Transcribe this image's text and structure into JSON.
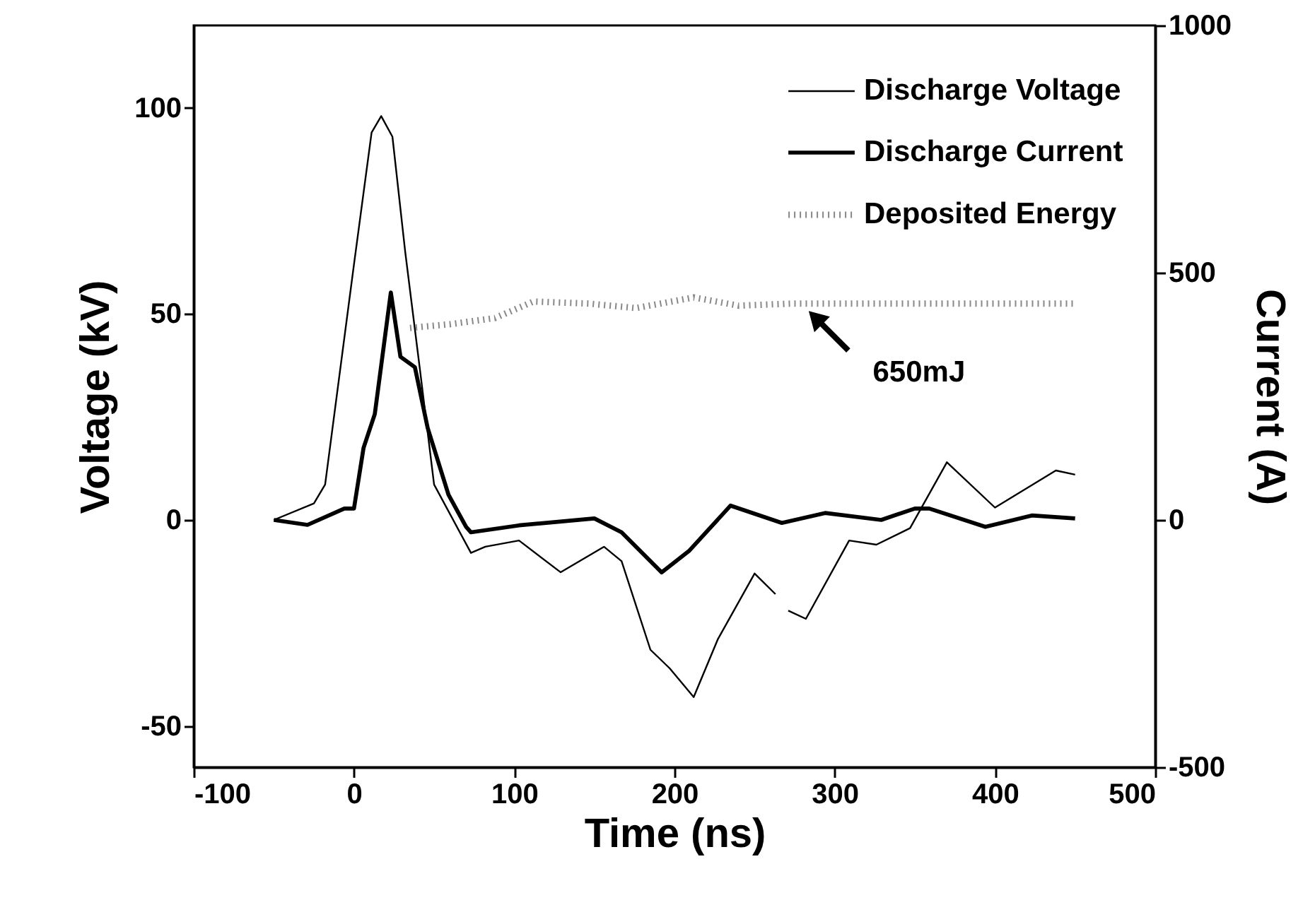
{
  "chart_data": {
    "type": "line",
    "xlabel": "Time (ns)",
    "ylabel": "Voltage (kV)",
    "y2label": "Current (A)",
    "xlim": [
      -100,
      500
    ],
    "xticks": [
      -100,
      0,
      100,
      200,
      300,
      400,
      500
    ],
    "ylim": [
      -60,
      120
    ],
    "yticks": [
      -50,
      0,
      50,
      100
    ],
    "y2lim": [
      -500,
      1000
    ],
    "y2ticks": [
      -500,
      0,
      500,
      1000
    ],
    "grid": false,
    "legend": "top right",
    "series": [
      {
        "name": "Discharge Voltage",
        "color": "#000000",
        "line_style": "solid",
        "x": [
          -50,
          -25,
          -18,
          0,
          11,
          17,
          24,
          32,
          41,
          50,
          73,
          82,
          103,
          129,
          156,
          167,
          185,
          197,
          212,
          227,
          250,
          263,
          267,
          271,
          282,
          309,
          326,
          347,
          370,
          400,
          438,
          450
        ],
        "values": [
          0,
          4,
          8.6,
          62,
          94,
          98,
          93,
          65,
          37,
          8.6,
          -8,
          -6.5,
          -5,
          -12.7,
          -6.5,
          -10,
          -31.5,
          -36,
          -43,
          -29,
          -13,
          -18,
          null,
          -22,
          -24,
          -5,
          -6,
          -2,
          14,
          3,
          12,
          11
        ]
      },
      {
        "name": "Discharge Current",
        "color": "#000000",
        "line_style": "solid",
        "axis": "y2",
        "x": [
          -50,
          -29,
          -6,
          0,
          6,
          13,
          23,
          29,
          38,
          46,
          59,
          70,
          73,
          103,
          150,
          167,
          192,
          209,
          235,
          267,
          294,
          329,
          350,
          359,
          394,
          423,
          450
        ],
        "values": [
          0,
          -10,
          23,
          23,
          146,
          214,
          460,
          330,
          309,
          186,
          51,
          -14,
          -25,
          -11,
          3,
          -25,
          -106,
          -63,
          29,
          -6,
          14,
          0,
          23,
          23,
          -14,
          9,
          3
        ]
      },
      {
        "name": "Deposited Energy",
        "color": "#888888",
        "line_style": "dotted",
        "x": [
          35,
          60,
          88,
          112,
          147,
          176,
          212,
          240,
          273,
          320,
          380,
          450
        ],
        "values": [
          46.6,
          47.5,
          49,
          53,
          52.5,
          51.4,
          54,
          52,
          52.5,
          52.5,
          52.5,
          52.5
        ]
      }
    ],
    "annotations": [
      {
        "text": "650mJ",
        "x": 282,
        "y": 51.4
      }
    ]
  }
}
